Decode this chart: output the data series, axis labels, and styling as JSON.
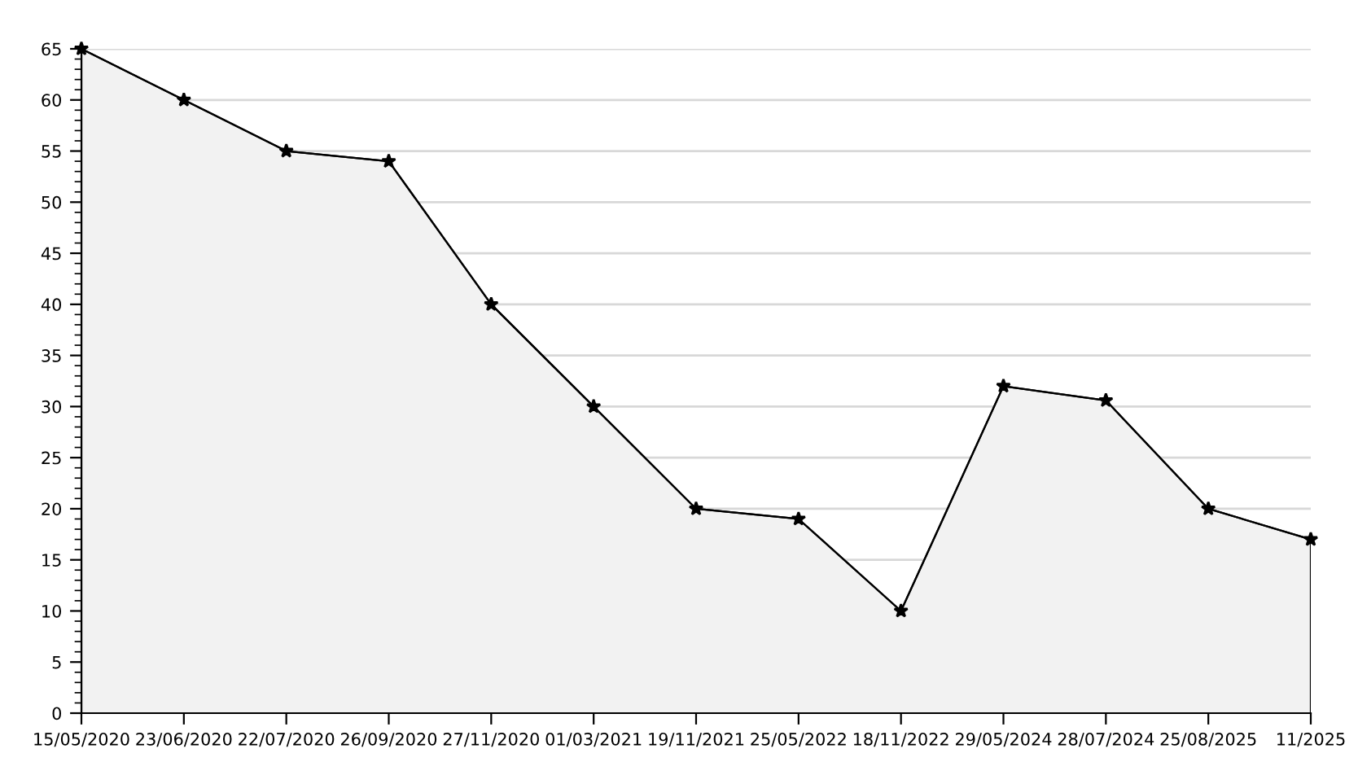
{
  "chart_data": {
    "type": "area",
    "categories": [
      "15/05/2020",
      "23/06/2020",
      "22/07/2020",
      "26/09/2020",
      "27/11/2020",
      "01/03/2021",
      "19/11/2021",
      "25/05/2022",
      "18/11/2022",
      "29/05/2024",
      "28/07/2024",
      "25/08/2025",
      "11/2025"
    ],
    "series": [
      {
        "color": "#000000",
        "values": [
          65,
          60,
          55,
          54,
          40,
          30,
          20,
          19,
          10,
          32,
          30.6,
          20,
          17
        ]
      }
    ],
    "ylim": [
      0,
      65
    ],
    "yticks": [
      0,
      5,
      10,
      15,
      20,
      25,
      30,
      35,
      40,
      45,
      50,
      55,
      60,
      65
    ],
    "grid": "y",
    "marker": "star",
    "line_style": "solid",
    "legend": false
  }
}
